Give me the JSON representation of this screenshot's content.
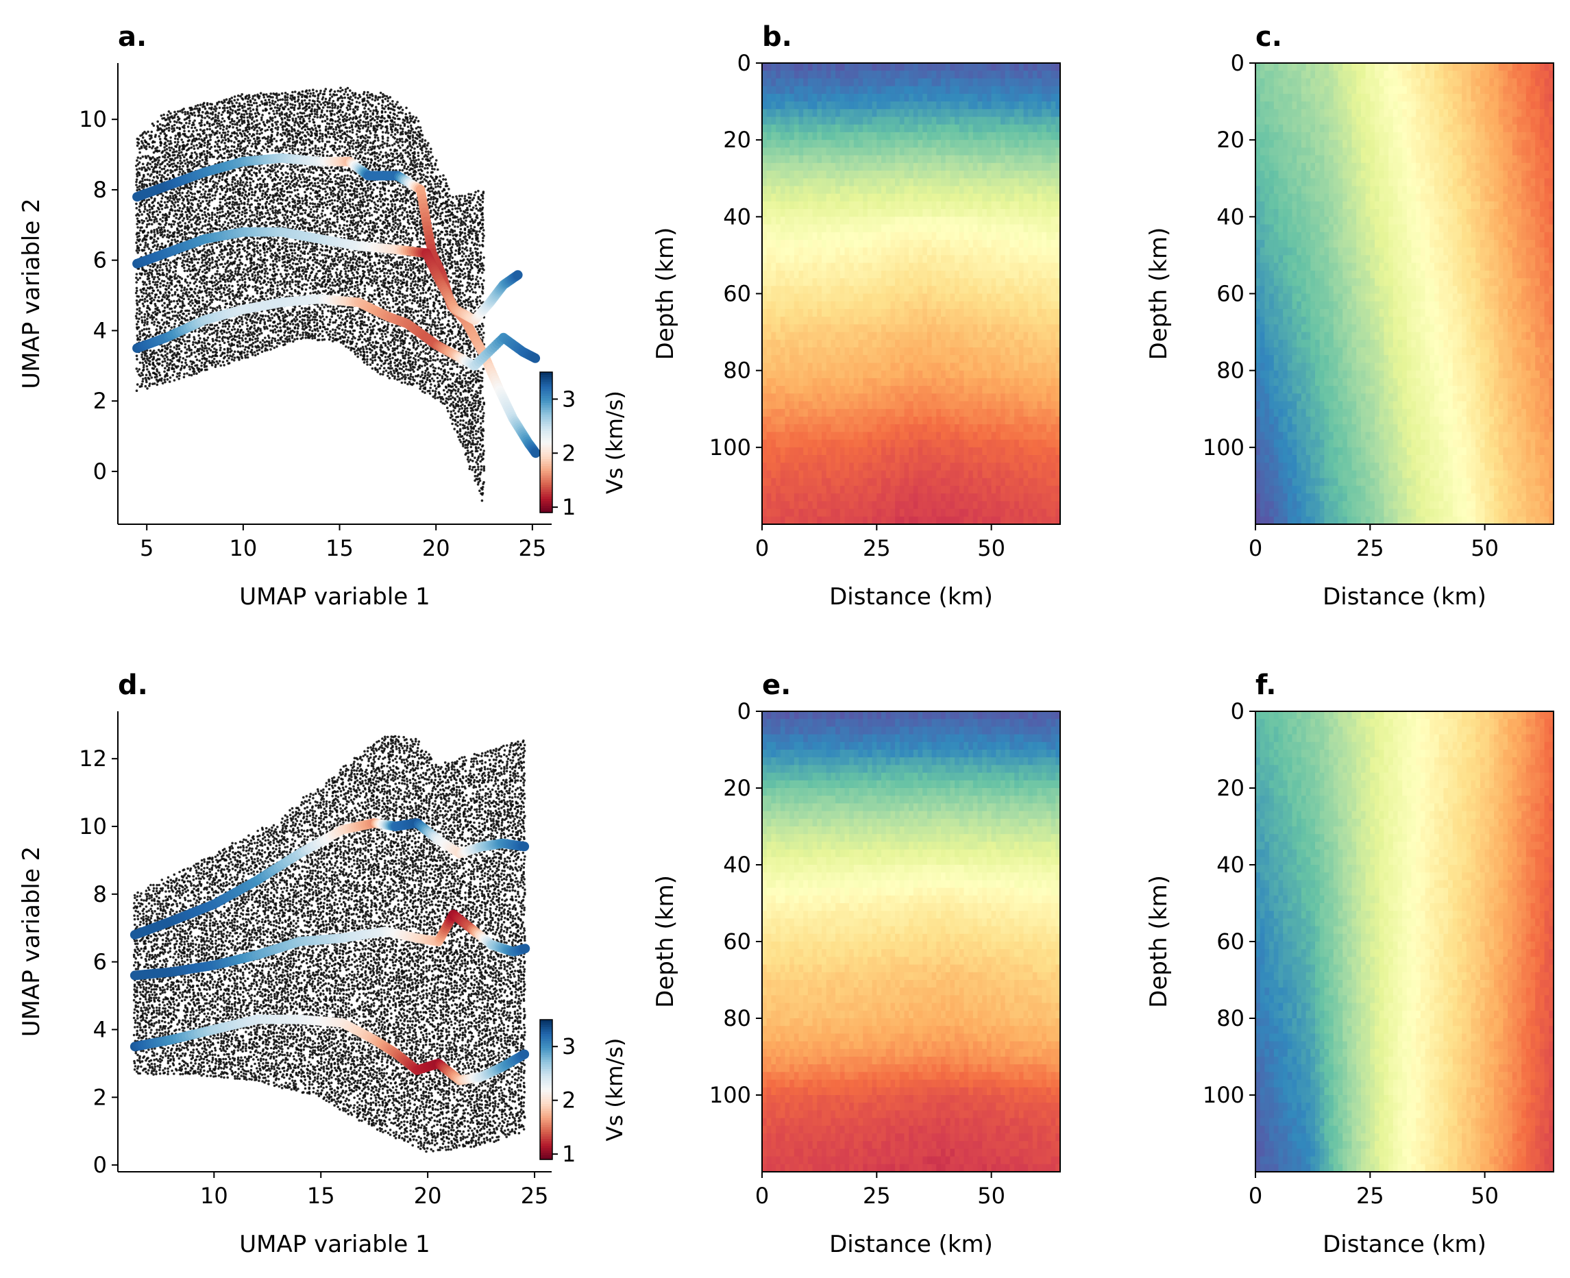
{
  "colors": {
    "spectral_r": [
      "#5e4fa2",
      "#3288bd",
      "#66c2a5",
      "#abdda4",
      "#e6f598",
      "#ffffbf",
      "#fee08b",
      "#fdae61",
      "#f46d43",
      "#d53e4f",
      "#9e0142"
    ],
    "rdbu": [
      "#67001f",
      "#b2182b",
      "#d6604d",
      "#f4a582",
      "#fddbc7",
      "#f7f7f7",
      "#d1e5f0",
      "#92c5de",
      "#4393c3",
      "#2166ac",
      "#053061"
    ],
    "scatter_points": "#000000"
  },
  "chart_data": [
    {
      "panel": "a.",
      "type": "scatter",
      "xlabel": "UMAP variable 1",
      "ylabel": "UMAP variable 2",
      "xlim": [
        3.5,
        26
      ],
      "ylim": [
        -1.5,
        11.6
      ],
      "xticks": [
        5,
        10,
        15,
        20,
        25
      ],
      "yticks": [
        0,
        2,
        4,
        6,
        8,
        10
      ],
      "colorbar": {
        "label": "Vs (km/s)",
        "ticks": [
          1,
          2,
          3
        ],
        "range": [
          0.9,
          3.5
        ]
      },
      "outline_upper": [
        [
          4.5,
          9.5
        ],
        [
          6,
          10.2
        ],
        [
          10,
          10.7
        ],
        [
          15,
          10.9
        ],
        [
          17.5,
          10.7
        ],
        [
          19,
          10.1
        ],
        [
          20,
          8.8
        ],
        [
          21,
          7.8
        ],
        [
          22.5,
          8.0
        ],
        [
          24,
          9.0
        ],
        [
          24.5,
          6.5
        ],
        [
          25,
          3.5
        ],
        [
          25,
          1.5
        ],
        [
          24.5,
          0.3
        ],
        [
          22.5,
          -0.9
        ]
      ],
      "outline_lower": [
        [
          4.5,
          2.3
        ],
        [
          7,
          2.7
        ],
        [
          10,
          3.2
        ],
        [
          13,
          3.8
        ],
        [
          15,
          3.7
        ],
        [
          17,
          2.8
        ],
        [
          19,
          2.4
        ],
        [
          20.5,
          1.9
        ],
        [
          21.5,
          0.5
        ],
        [
          22.5,
          -0.9
        ]
      ],
      "tracks": [
        {
          "x": [
            4.5,
            6,
            8,
            10,
            12,
            14,
            15.5,
            16.5,
            18,
            19.2,
            19.8,
            20.3,
            20.8,
            21.5,
            22.5,
            23.3,
            24,
            24.8,
            25.2
          ],
          "y": [
            7.8,
            8.1,
            8.5,
            8.8,
            8.9,
            8.8,
            8.8,
            8.4,
            8.4,
            8.0,
            6.2,
            5.6,
            4.7,
            4.3,
            3.3,
            2.3,
            1.5,
            0.8,
            0.5
          ],
          "vs": [
            3.3,
            3.3,
            3.1,
            2.9,
            2.6,
            2.3,
            1.8,
            3.2,
            3.2,
            1.7,
            1.3,
            1.3,
            1.5,
            1.6,
            1.8,
            2.2,
            2.5,
            3.0,
            3.3
          ]
        },
        {
          "x": [
            4.5,
            6,
            8,
            10,
            12,
            14,
            16,
            18,
            19.5,
            20.2,
            21,
            22,
            22.8,
            23.5,
            24.3
          ],
          "y": [
            5.9,
            6.2,
            6.6,
            6.8,
            6.8,
            6.6,
            6.4,
            6.3,
            6.2,
            5.4,
            4.6,
            4.3,
            4.8,
            5.3,
            5.6
          ],
          "vs": [
            3.3,
            3.2,
            3.0,
            2.8,
            2.6,
            2.5,
            2.3,
            2.0,
            1.2,
            1.4,
            1.7,
            2.0,
            2.5,
            2.9,
            3.3
          ]
        },
        {
          "x": [
            4.5,
            6,
            8,
            10,
            12,
            14,
            16,
            17.5,
            18.5,
            19.5,
            20,
            21,
            22,
            23.5,
            24.5,
            25.2
          ],
          "y": [
            3.5,
            3.8,
            4.3,
            4.6,
            4.8,
            4.9,
            4.8,
            4.4,
            4.2,
            3.8,
            3.6,
            3.3,
            3.0,
            3.8,
            3.4,
            3.2
          ],
          "vs": [
            3.3,
            3.1,
            2.6,
            2.4,
            2.4,
            2.3,
            1.8,
            1.6,
            1.5,
            1.4,
            1.4,
            1.8,
            2.5,
            3.0,
            3.2,
            3.3
          ]
        }
      ]
    },
    {
      "panel": "b.",
      "type": "heatmap",
      "xlabel": "Distance (km)",
      "ylabel": "Depth (km)",
      "xlim": [
        0,
        65
      ],
      "ylim": [
        120,
        0
      ],
      "xticks": [
        0,
        25,
        50
      ],
      "yticks": [
        0,
        20,
        40,
        60,
        80,
        100
      ],
      "colormap": "Spectral (0 = red, 1 = purple)",
      "depth_profile": [
        [
          0,
          0.02
        ],
        [
          10,
          0.1
        ],
        [
          20,
          0.22
        ],
        [
          30,
          0.34
        ],
        [
          40,
          0.44
        ],
        [
          48,
          0.5
        ],
        [
          60,
          0.57
        ],
        [
          70,
          0.63
        ],
        [
          80,
          0.67
        ],
        [
          90,
          0.73
        ],
        [
          100,
          0.8
        ],
        [
          110,
          0.84
        ],
        [
          120,
          0.87
        ]
      ],
      "lateral_variation": [
        [
          0,
          0.0
        ],
        [
          20,
          0.01
        ],
        [
          35,
          0.04
        ],
        [
          50,
          0.02
        ],
        [
          65,
          0.0
        ]
      ]
    },
    {
      "panel": "c.",
      "type": "heatmap",
      "xlabel": "Distance (km)",
      "ylabel": "Depth (km)",
      "xlim": [
        0,
        65
      ],
      "ylim": [
        120,
        0
      ],
      "xticks": [
        0,
        25,
        50
      ],
      "yticks": [
        0,
        20,
        40,
        60,
        80,
        100
      ],
      "colormap": "Spectral (0 = red, 1 = purple)",
      "distance_profile_top": [
        [
          0,
          0.25
        ],
        [
          15,
          0.32
        ],
        [
          28,
          0.48
        ],
        [
          40,
          0.6
        ],
        [
          52,
          0.72
        ],
        [
          65,
          0.85
        ]
      ],
      "distance_profile_bottom": [
        [
          0,
          0.0
        ],
        [
          12,
          0.12
        ],
        [
          25,
          0.25
        ],
        [
          35,
          0.38
        ],
        [
          45,
          0.48
        ],
        [
          55,
          0.62
        ],
        [
          65,
          0.7
        ]
      ]
    },
    {
      "panel": "d.",
      "type": "scatter",
      "xlabel": "UMAP variable 1",
      "ylabel": "UMAP variable 2",
      "xlim": [
        5.5,
        25.8
      ],
      "ylim": [
        -0.2,
        13.4
      ],
      "xticks": [
        10,
        15,
        20,
        25
      ],
      "yticks": [
        0,
        2,
        4,
        6,
        8,
        10,
        12
      ],
      "colorbar": {
        "label": "Vs (km/s)",
        "ticks": [
          1,
          2,
          3
        ],
        "range": [
          0.9,
          3.5
        ]
      },
      "outline_upper": [
        [
          6.3,
          8.0
        ],
        [
          10,
          9.2
        ],
        [
          13,
          10.2
        ],
        [
          15.5,
          11.5
        ],
        [
          18,
          12.7
        ],
        [
          19.5,
          12.6
        ],
        [
          20.5,
          11.8
        ],
        [
          22,
          12.1
        ],
        [
          24.5,
          12.6
        ]
      ],
      "outline_lower": [
        [
          6.3,
          2.7
        ],
        [
          9,
          2.7
        ],
        [
          12,
          2.5
        ],
        [
          15,
          2.0
        ],
        [
          17.5,
          1.1
        ],
        [
          20,
          0.4
        ],
        [
          22.5,
          0.6
        ],
        [
          24.5,
          1.0
        ]
      ],
      "tracks": [
        {
          "x": [
            6.3,
            8,
            10,
            12,
            14,
            16,
            17.5,
            18.5,
            19.5,
            20.5,
            21.5,
            22.5,
            23.5,
            24.6
          ],
          "y": [
            6.8,
            7.2,
            7.7,
            8.4,
            9.2,
            9.9,
            10.1,
            10.0,
            10.1,
            9.6,
            9.2,
            9.4,
            9.5,
            9.4
          ],
          "vs": [
            3.3,
            3.3,
            3.2,
            3.0,
            2.6,
            2.0,
            1.6,
            3.2,
            3.3,
            2.3,
            2.0,
            2.6,
            3.0,
            3.3
          ]
        },
        {
          "x": [
            6.3,
            8,
            10,
            12,
            14,
            16,
            18,
            19.5,
            20.5,
            21.2,
            22,
            23,
            24,
            24.6
          ],
          "y": [
            5.6,
            5.7,
            5.9,
            6.2,
            6.6,
            6.7,
            6.9,
            6.7,
            6.6,
            7.4,
            7.0,
            6.5,
            6.3,
            6.4
          ],
          "vs": [
            3.3,
            3.3,
            3.2,
            2.9,
            2.7,
            2.5,
            2.3,
            2.0,
            1.8,
            1.1,
            1.4,
            2.6,
            3.1,
            3.3
          ]
        },
        {
          "x": [
            6.3,
            8,
            10,
            12,
            14,
            16,
            17.5,
            18.5,
            19.5,
            20.5,
            21.5,
            22.5,
            23.5,
            24.6
          ],
          "y": [
            3.5,
            3.7,
            4.0,
            4.3,
            4.3,
            4.2,
            3.7,
            3.3,
            2.8,
            3.0,
            2.5,
            2.6,
            2.9,
            3.3
          ],
          "vs": [
            3.3,
            3.0,
            2.6,
            2.4,
            2.3,
            2.1,
            1.8,
            1.5,
            1.2,
            1.1,
            1.8,
            2.4,
            2.9,
            3.3
          ]
        }
      ]
    },
    {
      "panel": "e.",
      "type": "heatmap",
      "xlabel": "Distance (km)",
      "ylabel": "Depth (km)",
      "xlim": [
        0,
        65
      ],
      "ylim": [
        120,
        0
      ],
      "xticks": [
        0,
        25,
        50
      ],
      "yticks": [
        0,
        20,
        40,
        60,
        80,
        100
      ],
      "colormap": "Spectral (0 = red, 1 = purple)",
      "depth_profile": [
        [
          0,
          0.02
        ],
        [
          10,
          0.1
        ],
        [
          20,
          0.22
        ],
        [
          30,
          0.33
        ],
        [
          40,
          0.43
        ],
        [
          50,
          0.52
        ],
        [
          60,
          0.58
        ],
        [
          70,
          0.63
        ],
        [
          80,
          0.66
        ],
        [
          90,
          0.72
        ],
        [
          100,
          0.82
        ],
        [
          110,
          0.86
        ],
        [
          120,
          0.88
        ]
      ],
      "lateral_variation": [
        [
          0,
          0.0
        ],
        [
          20,
          0.01
        ],
        [
          40,
          0.03
        ],
        [
          65,
          0.0
        ]
      ]
    },
    {
      "panel": "f.",
      "type": "heatmap",
      "xlabel": "Distance (km)",
      "ylabel": "Depth (km)",
      "xlim": [
        0,
        65
      ],
      "ylim": [
        120,
        0
      ],
      "xticks": [
        0,
        25,
        50
      ],
      "yticks": [
        0,
        20,
        40,
        60,
        80,
        100
      ],
      "colormap": "Spectral (0 = red, 1 = purple)",
      "distance_profile_top": [
        [
          0,
          0.18
        ],
        [
          15,
          0.28
        ],
        [
          28,
          0.42
        ],
        [
          38,
          0.52
        ],
        [
          50,
          0.62
        ],
        [
          65,
          0.8
        ]
      ],
      "distance_profile_bottom": [
        [
          0,
          0.02
        ],
        [
          12,
          0.1
        ],
        [
          22,
          0.3
        ],
        [
          32,
          0.48
        ],
        [
          42,
          0.6
        ],
        [
          52,
          0.72
        ],
        [
          65,
          0.88
        ]
      ]
    }
  ]
}
